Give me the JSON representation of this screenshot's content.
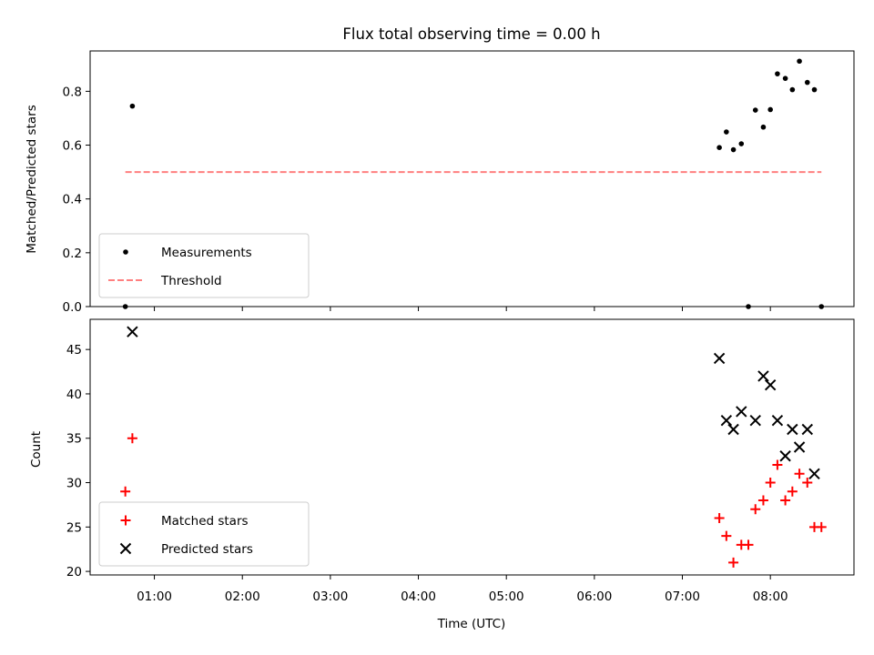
{
  "chart_data": [
    {
      "type": "scatter",
      "title": "Flux total observing time = 0.00 h",
      "xlabel": "",
      "ylabel": "Matched/Predicted stars",
      "x_unit": "hours (UTC)",
      "xlim": [
        0.27,
        8.95
      ],
      "ylim": [
        0.0,
        0.95
      ],
      "yticks": [
        0.0,
        0.2,
        0.4,
        0.6,
        0.8
      ],
      "ytick_labels": [
        "0.0",
        "0.2",
        "0.4",
        "0.6",
        "0.8"
      ],
      "xticks": [
        1,
        2,
        3,
        4,
        5,
        6,
        7,
        8
      ],
      "legend": {
        "position": "lower-left"
      },
      "grid": false,
      "series": [
        {
          "name": "Measurements",
          "kind": "scatter",
          "marker": "dot",
          "color": "#000000",
          "x": [
            0.67,
            0.75,
            7.42,
            7.5,
            7.58,
            7.67,
            7.75,
            7.83,
            7.92,
            8.0,
            8.08,
            8.17,
            8.25,
            8.33,
            8.42,
            8.5,
            8.58
          ],
          "y": [
            0.0,
            0.745,
            0.591,
            0.649,
            0.583,
            0.605,
            0.0,
            0.73,
            0.667,
            0.732,
            0.865,
            0.848,
            0.806,
            0.912,
            0.833,
            0.806,
            0.0
          ]
        },
        {
          "name": "Threshold",
          "kind": "line",
          "style": "dashed",
          "color": "#ff7f7f",
          "x": [
            0.67,
            8.58
          ],
          "y": [
            0.5,
            0.5
          ]
        }
      ]
    },
    {
      "type": "scatter",
      "title": "",
      "xlabel": "Time (UTC)",
      "ylabel": "Count",
      "x_unit": "hours (UTC)",
      "xlim": [
        0.27,
        8.95
      ],
      "ylim": [
        19.6,
        48.4
      ],
      "yticks": [
        20,
        25,
        30,
        35,
        40,
        45
      ],
      "ytick_labels": [
        "20",
        "25",
        "30",
        "35",
        "40",
        "45"
      ],
      "xticks": [
        1,
        2,
        3,
        4,
        5,
        6,
        7,
        8
      ],
      "xtick_labels": [
        "01:00",
        "02:00",
        "03:00",
        "04:00",
        "05:00",
        "06:00",
        "07:00",
        "08:00"
      ],
      "legend": {
        "position": "lower-left"
      },
      "grid": false,
      "series": [
        {
          "name": "Matched stars",
          "kind": "scatter",
          "marker": "plus",
          "color": "#ff0000",
          "x": [
            0.67,
            0.75,
            7.42,
            7.5,
            7.58,
            7.67,
            7.75,
            7.83,
            7.92,
            8.0,
            8.08,
            8.17,
            8.25,
            8.33,
            8.42,
            8.5,
            8.58
          ],
          "y": [
            29,
            35,
            26,
            24,
            21,
            23,
            23,
            27,
            28,
            30,
            32,
            28,
            29,
            31,
            30,
            25,
            25
          ]
        },
        {
          "name": "Predicted stars",
          "kind": "scatter",
          "marker": "x",
          "color": "#000000",
          "x": [
            0.75,
            7.42,
            7.5,
            7.58,
            7.67,
            7.83,
            7.92,
            8.0,
            8.08,
            8.17,
            8.25,
            8.33,
            8.42,
            8.5
          ],
          "y": [
            47,
            44,
            37,
            36,
            38,
            37,
            42,
            41,
            37,
            33,
            36,
            34,
            36,
            31
          ]
        }
      ]
    }
  ]
}
